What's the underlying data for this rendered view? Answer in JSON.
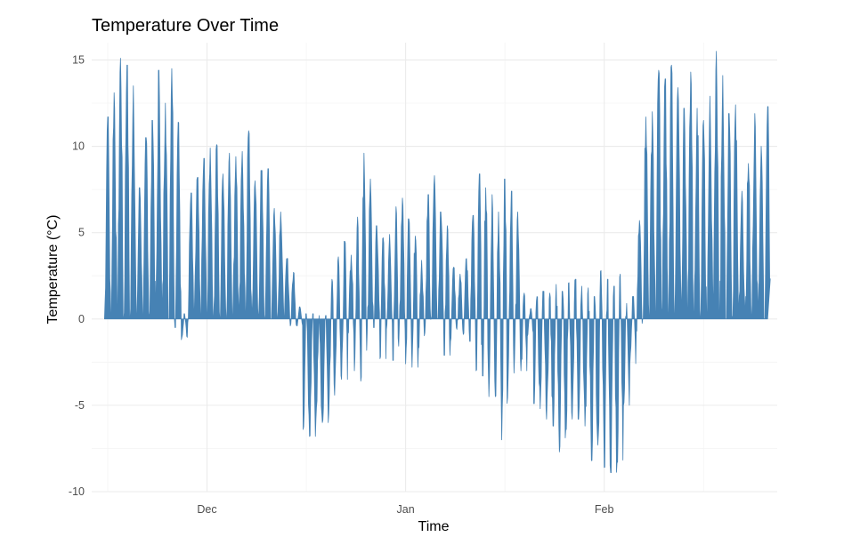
{
  "chart_data": {
    "type": "area",
    "title": "Temperature Over Time",
    "xlabel": "Time",
    "ylabel": "Temperature (°C)",
    "xlim": [
      "2023-11-13",
      "2024-02-28"
    ],
    "ylim": [
      -10,
      16
    ],
    "y_ticks": [
      -10,
      -5,
      0,
      5,
      10,
      15
    ],
    "y_tick_labels": [
      "-10",
      "-5",
      "0",
      "5",
      "10",
      "15"
    ],
    "x_ticks": [
      "2023-12-01",
      "2024-01-01",
      "2024-02-01"
    ],
    "x_tick_labels": [
      "Dec",
      "Jan",
      "Feb"
    ],
    "grid": true,
    "fill_color": "#4682B4",
    "baseline": 0,
    "series": [
      {
        "x": [
          "2023-11-15",
          "2023-11-16",
          "2023-11-17",
          "2023-11-18",
          "2023-11-19",
          "2023-11-20",
          "2023-11-21",
          "2023-11-22",
          "2023-11-23",
          "2023-11-24",
          "2023-11-25",
          "2023-11-26",
          "2023-11-27",
          "2023-11-28",
          "2023-11-29",
          "2023-11-30",
          "2023-12-01",
          "2023-12-02",
          "2023-12-03",
          "2023-12-04",
          "2023-12-05",
          "2023-12-06",
          "2023-12-07",
          "2023-12-08",
          "2023-12-09",
          "2023-12-10",
          "2023-12-11",
          "2023-12-12",
          "2023-12-13",
          "2023-12-14",
          "2023-12-15",
          "2023-12-16",
          "2023-12-17",
          "2023-12-18",
          "2023-12-19",
          "2023-12-20",
          "2023-12-21",
          "2023-12-22",
          "2023-12-23",
          "2023-12-24",
          "2023-12-25",
          "2023-12-26",
          "2023-12-27",
          "2023-12-28",
          "2023-12-29",
          "2023-12-30",
          "2023-12-31",
          "2024-01-01",
          "2024-01-02",
          "2024-01-03",
          "2024-01-04",
          "2024-01-05",
          "2024-01-06",
          "2024-01-07",
          "2024-01-08",
          "2024-01-09",
          "2024-01-10",
          "2024-01-11",
          "2024-01-12",
          "2024-01-13",
          "2024-01-14",
          "2024-01-15",
          "2024-01-16",
          "2024-01-17",
          "2024-01-18",
          "2024-01-19",
          "2024-01-20",
          "2024-01-21",
          "2024-01-22",
          "2024-01-23",
          "2024-01-24",
          "2024-01-25",
          "2024-01-26",
          "2024-01-27",
          "2024-01-28",
          "2024-01-29",
          "2024-01-30",
          "2024-01-31",
          "2024-02-01",
          "2024-02-02",
          "2024-02-03",
          "2024-02-04",
          "2024-02-05",
          "2024-02-06",
          "2024-02-07",
          "2024-02-08",
          "2024-02-09",
          "2024-02-10",
          "2024-02-11",
          "2024-02-12",
          "2024-02-13",
          "2024-02-14",
          "2024-02-15",
          "2024-02-16",
          "2024-02-17",
          "2024-02-18",
          "2024-02-19",
          "2024-02-20",
          "2024-02-21",
          "2024-02-22",
          "2024-02-23",
          "2024-02-24",
          "2024-02-25",
          "2024-02-26"
        ],
        "max": [
          11.7,
          13.1,
          15.1,
          14.7,
          13.5,
          7.6,
          10.5,
          11.5,
          14.4,
          12.5,
          14.5,
          11.4,
          0.3,
          7.3,
          8.2,
          9.3,
          9.9,
          10.1,
          8.4,
          9.6,
          9.4,
          9.7,
          10.9,
          8.0,
          8.6,
          8.7,
          6.4,
          6.2,
          3.5,
          2.7,
          0.7,
          0.3,
          0.3,
          0.2,
          0.2,
          2.3,
          3.6,
          4.5,
          3.7,
          5.9,
          9.6,
          8.1,
          5.4,
          4.7,
          4.9,
          6.5,
          7.0,
          5.8,
          4.8,
          3.4,
          7.2,
          8.3,
          6.2,
          5.4,
          3.0,
          2.6,
          3.5,
          6.0,
          8.4,
          7.6,
          7.2,
          6.2,
          8.1,
          7.4,
          6.2,
          1.5,
          0.6,
          1.3,
          1.6,
          1.5,
          2.0,
          1.6,
          2.1,
          2.3,
          1.9,
          1.8,
          1.3,
          2.8,
          2.3,
          1.9,
          2.6,
          0.9,
          1.3,
          5.7,
          11.7,
          12.0,
          14.4,
          13.9,
          14.7,
          13.4,
          12.2,
          14.3,
          12.2,
          11.5,
          12.9,
          15.5,
          14.1,
          11.9,
          12.4,
          7.4,
          9.0,
          11.9,
          10.0,
          12.3
        ],
        "min": [
          0,
          0,
          0,
          0,
          0,
          0,
          0,
          0,
          0,
          0,
          0,
          -0.5,
          -1.2,
          -0.2,
          0,
          0,
          0,
          0,
          0,
          0,
          0,
          0,
          0,
          0,
          0,
          0,
          0,
          0,
          0,
          -0.4,
          -0.4,
          -6.4,
          -6.8,
          -5.8,
          -6.0,
          -5.5,
          -3.3,
          -3.5,
          -0.8,
          -3.0,
          -3.6,
          -0.8,
          -0.5,
          -2.3,
          -0.6,
          -2.4,
          -0.6,
          -2.6,
          -2.8,
          -1.7,
          -0.8,
          0,
          0,
          -2.1,
          -1.3,
          -0.6,
          -0.9,
          -1.3,
          -3.0,
          -3.3,
          -4.5,
          -4.5,
          -7.0,
          -3.4,
          -2.3,
          -3.0,
          -1.0,
          -4.9,
          -5.2,
          -5.8,
          -6.2,
          -7.7,
          -6.4,
          -5.8,
          -5.8,
          -6.2,
          -8.2,
          -7.3,
          -8.6,
          -8.9,
          -8.3,
          -5.0,
          -2.6,
          -0.7,
          0,
          0,
          0,
          0,
          0,
          0,
          0,
          0,
          0,
          0,
          0,
          0,
          0,
          0,
          0,
          0,
          0,
          0,
          0,
          0
        ]
      }
    ]
  }
}
